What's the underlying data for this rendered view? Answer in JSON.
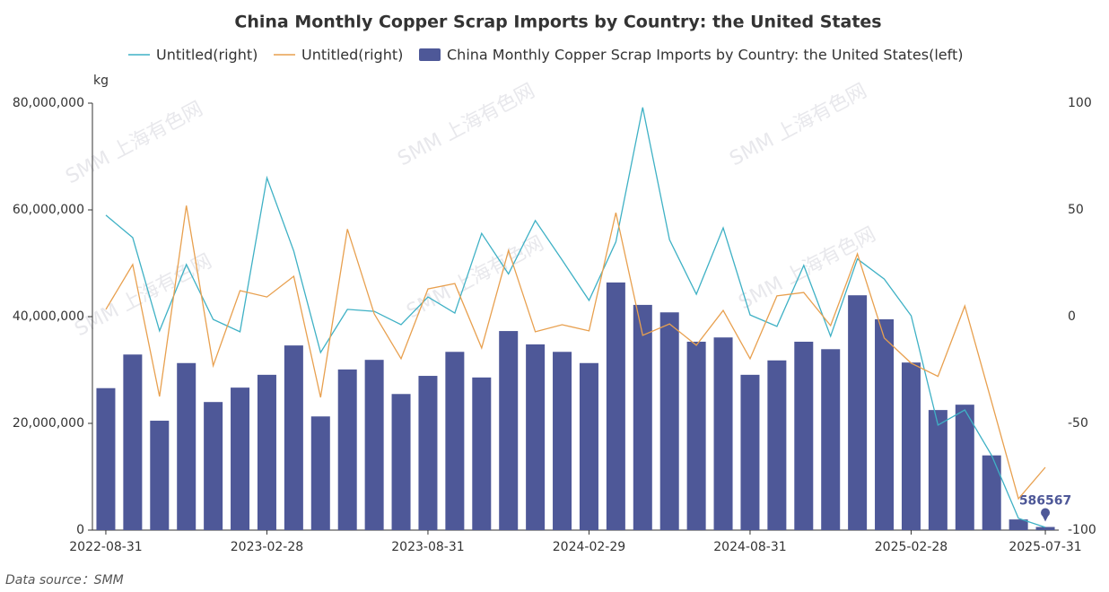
{
  "chart_data": {
    "type": "bar_line",
    "title": "China Monthly Copper Scrap Imports by Country: the United States",
    "y_axis_label": "kg",
    "source": "Data source：SMM",
    "watermark": "SMM 上海有色网",
    "categories": [
      "2022-08-31",
      null,
      null,
      null,
      null,
      null,
      "2023-02-28",
      null,
      null,
      null,
      null,
      null,
      "2023-08-31",
      null,
      null,
      null,
      null,
      null,
      "2024-02-29",
      null,
      null,
      null,
      null,
      null,
      "2024-08-31",
      null,
      null,
      null,
      null,
      null,
      "2025-02-28",
      null,
      null,
      null,
      null,
      "2025-07-31"
    ],
    "ylim": [
      0,
      80000000
    ],
    "yticks": [
      {
        "value": 0,
        "label": "0"
      },
      {
        "value": 20000000,
        "label": "20,000,000"
      },
      {
        "value": 40000000,
        "label": "40,000,000"
      },
      {
        "value": 60000000,
        "label": "60,000,000"
      },
      {
        "value": 80000000,
        "label": "80,000,000"
      }
    ],
    "y2lim": [
      -100,
      100
    ],
    "y2ticks": [
      -100,
      -50,
      0,
      50,
      100
    ],
    "series": [
      {
        "name": "Untitled(right)",
        "type": "line",
        "axis": "y2",
        "color": "#3fb1c5",
        "values": [
          47.5,
          37,
          -6.7,
          24.4,
          -1.3,
          -7.1,
          65,
          30.7,
          -16.8,
          3.4,
          2.5,
          -3.8,
          9.2,
          1.7,
          39,
          20,
          45,
          26.5,
          7.6,
          35,
          98,
          36,
          10.5,
          41.6,
          0.8,
          -4.6,
          24,
          -9.2,
          27,
          17.6,
          0.4,
          -50.8,
          -43.7,
          -65,
          -94.5,
          -98.7
        ]
      },
      {
        "name": "Untitled(right)",
        "type": "line",
        "axis": "y2",
        "color": "#e8a04f",
        "values": [
          3.4,
          24.4,
          -37.4,
          52,
          -23,
          12.2,
          9.2,
          18.9,
          -37.8,
          41,
          1.3,
          -19.7,
          13,
          15.5,
          -14.7,
          31,
          -7.1,
          -3.8,
          -6.7,
          48.7,
          -8.8,
          -3.4,
          -13.4,
          2.9,
          -19.7,
          9.7,
          11.3,
          -4.2,
          29.4,
          -10,
          -21.8,
          -28,
          5,
          -40,
          -85.3,
          -70.6
        ]
      },
      {
        "name": "China Monthly Copper Scrap Imports by Country: the United States(left)",
        "type": "bar",
        "color": "#4e5898",
        "values": [
          26600000,
          32900000,
          20500000,
          31300000,
          24000000,
          26700000,
          29100000,
          34600000,
          21300000,
          30100000,
          31900000,
          25500000,
          28900000,
          33400000,
          28600000,
          37300000,
          34800000,
          33400000,
          31300000,
          46400000,
          42200000,
          40800000,
          35300000,
          36100000,
          29100000,
          31800000,
          35300000,
          33900000,
          44000000,
          39500000,
          31400000,
          22500000,
          23500000,
          14000000,
          2000000,
          586567
        ]
      }
    ]
  }
}
